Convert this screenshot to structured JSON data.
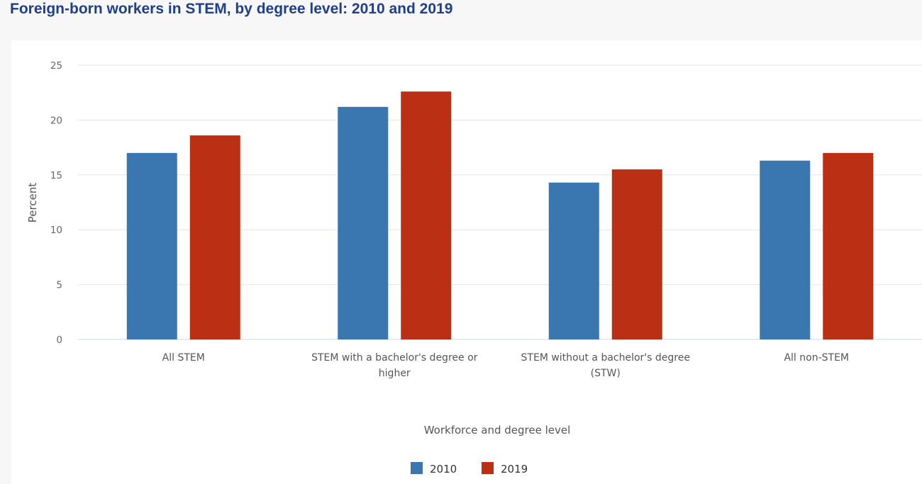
{
  "chart_data": {
    "type": "bar",
    "title": "Foreign-born workers in STEM, by degree level: 2010 and 2019",
    "xlabel": "Workforce and degree level",
    "ylabel": "Percent",
    "ylim": [
      0,
      25
    ],
    "yticks": [
      0,
      5,
      10,
      15,
      20,
      25
    ],
    "grid": true,
    "legend_position": "bottom",
    "categories": [
      [
        "All STEM"
      ],
      [
        "STEM with a bachelor's degree or",
        "higher"
      ],
      [
        "STEM without a bachelor's degree",
        "(STW)"
      ],
      [
        "All non-STEM"
      ]
    ],
    "series": [
      {
        "name": "2010",
        "color": "#3a76b0",
        "values": [
          17.0,
          21.2,
          14.3,
          16.3
        ]
      },
      {
        "name": "2019",
        "color": "#bb3014",
        "values": [
          18.6,
          22.6,
          15.5,
          17.0
        ]
      }
    ]
  }
}
